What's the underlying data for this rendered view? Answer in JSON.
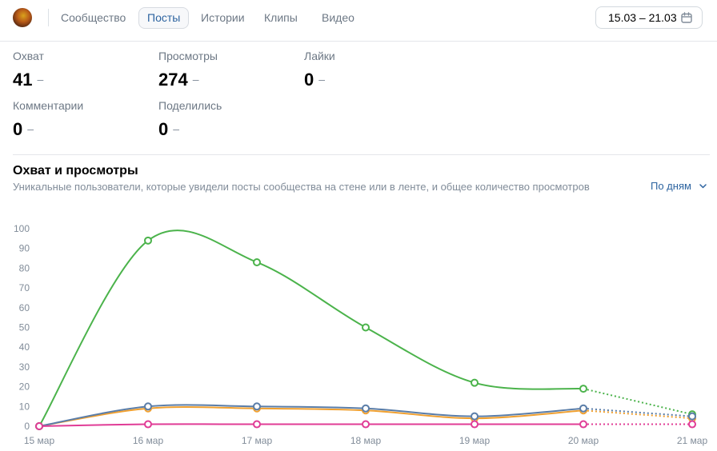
{
  "header": {
    "avatar_icon": "community-avatar",
    "tabs": [
      {
        "label": "Сообщество",
        "active": false
      },
      {
        "label": "Посты",
        "active": true
      },
      {
        "label": "Истории",
        "active": false
      },
      {
        "label": "Клипы",
        "active": false
      },
      {
        "label": "Видео",
        "active": false
      }
    ],
    "date_range": "15.03 – 21.03",
    "date_icon": "calendar-icon"
  },
  "stats": [
    {
      "label": "Охват",
      "value": "41",
      "delta": "–"
    },
    {
      "label": "Просмотры",
      "value": "274",
      "delta": "–"
    },
    {
      "label": "Лайки",
      "value": "0",
      "delta": "–"
    },
    {
      "label": "Комментарии",
      "value": "0",
      "delta": "–"
    },
    {
      "label": "Поделились",
      "value": "0",
      "delta": "–"
    }
  ],
  "section": {
    "title": "Охват и просмотры",
    "description": "Уникальные пользователи, которые увидели посты сообщества на стене или в ленте, и общее количество просмотров",
    "period_selector": "По дням",
    "period_icon": "chevron-down-icon"
  },
  "chart_data": {
    "type": "line",
    "x": [
      "15 мар",
      "16 мар",
      "17 мар",
      "18 мар",
      "19 мар",
      "20 мар",
      "21 мар"
    ],
    "y_ticks": [
      0,
      10,
      20,
      30,
      40,
      50,
      60,
      70,
      80,
      90,
      100
    ],
    "ylim": [
      0,
      100
    ],
    "grid": false,
    "dashed_last_segment": true,
    "series": [
      {
        "color": "#4bb34b",
        "values": [
          0,
          94,
          83,
          50,
          22,
          19,
          6
        ]
      },
      {
        "color": "#f0a030",
        "values": [
          0,
          9,
          9,
          8,
          4,
          8,
          4
        ]
      },
      {
        "color": "#5a7da8",
        "values": [
          0,
          10,
          10,
          9,
          5,
          9,
          5
        ]
      },
      {
        "color": "#e03c96",
        "values": [
          0,
          1,
          1,
          1,
          1,
          1,
          1
        ]
      }
    ]
  }
}
